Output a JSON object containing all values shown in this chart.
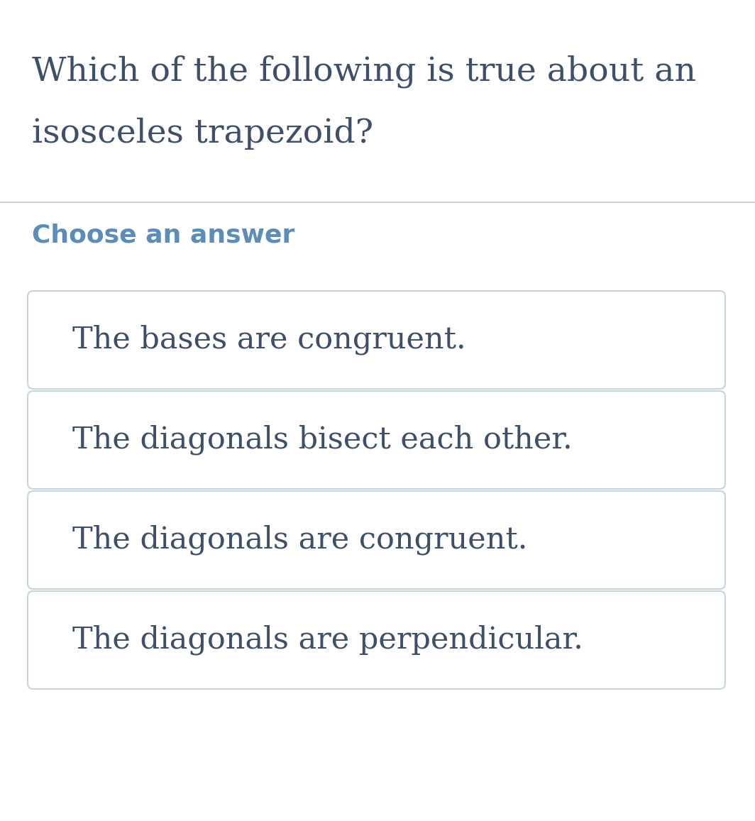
{
  "background_color": "#ffffff",
  "question_line1": "Which of the following is true about an",
  "question_line2": "isosceles trapezoid?",
  "question_color": "#3d5068",
  "question_fontsize": 34,
  "section_label": "Choose an answer",
  "section_label_color": "#5b8db8",
  "section_label_fontsize": 26,
  "divider_color": "#c8d4dc",
  "answers": [
    "The bases are congruent.",
    "The diagonals bisect each other.",
    "The diagonals are congruent.",
    "The diagonals are perpendicular."
  ],
  "answer_color": "#3d5068",
  "answer_fontsize": 31,
  "box_edge_color": "#c8d4dc",
  "box_face_color": "#ffffff",
  "fig_width": 10.64,
  "fig_height": 11.57,
  "dpi": 100
}
